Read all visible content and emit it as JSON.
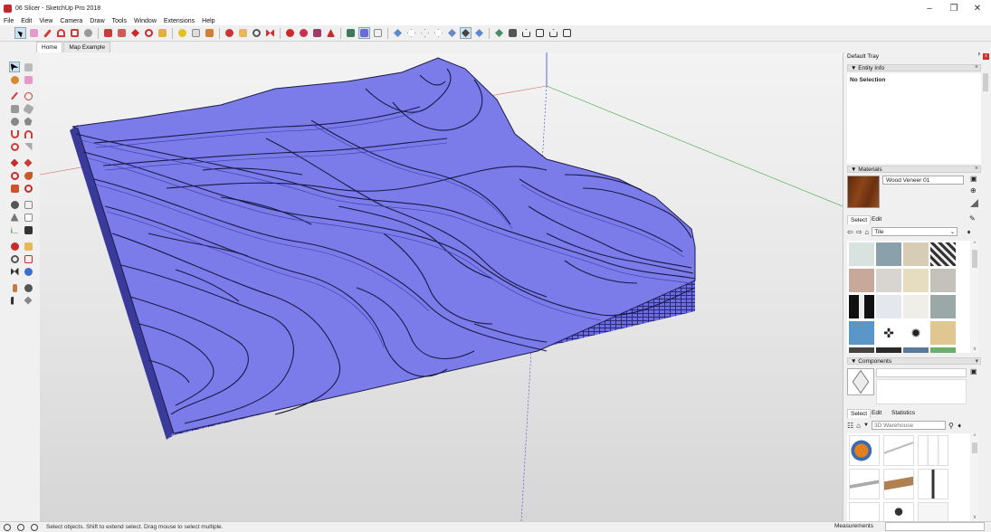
{
  "window": {
    "title": "06 Slicer - SketchUp Pro 2018",
    "minimize": "–",
    "maximize": "❐",
    "close": "✕"
  },
  "menu": [
    "File",
    "Edit",
    "View",
    "Camera",
    "Draw",
    "Tools",
    "Window",
    "Extensions",
    "Help"
  ],
  "scene_tabs": [
    {
      "label": "Home",
      "active": true
    },
    {
      "label": "Map Example",
      "active": false
    }
  ],
  "tray": {
    "title": "Default Tray",
    "pin": "ᵖ",
    "close": "x",
    "entity_info": {
      "header": "▼ Entity Info",
      "selection": "No Selection"
    },
    "materials": {
      "header": "▼ Materials",
      "name_value": "Wood Veneer 01",
      "tabs": [
        "Select",
        "Edit"
      ],
      "library": "Tile",
      "swatch_color": "#7a3a12"
    },
    "components": {
      "header": "▼ Components",
      "tabs": [
        "Select",
        "Edit",
        "Statistics"
      ],
      "search_placeholder": "3D Warehouse"
    }
  },
  "status": {
    "message": "Select objects. Shift to extend select. Drag mouse to select multiple.",
    "measurements_label": "Measurements",
    "measurements_value": ""
  },
  "colors": {
    "terrain": "#7b7bea",
    "terrain_dark": "#4a4ab8",
    "sketchup_red": "#c8242b"
  }
}
